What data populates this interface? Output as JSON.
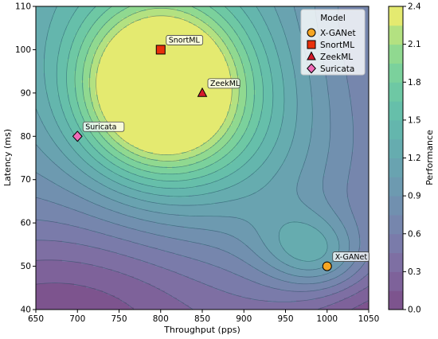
{
  "chart_data": {
    "type": "contour",
    "xlabel": "Throughput (pps)",
    "ylabel": "Latency (ms)",
    "xlim": [
      650,
      1050
    ],
    "ylim": [
      40,
      110
    ],
    "xticks": [
      "650",
      "700",
      "750",
      "800",
      "850",
      "900",
      "950",
      "1000",
      "1050"
    ],
    "yticks": [
      "40",
      "50",
      "60",
      "70",
      "80",
      "90",
      "100",
      "110"
    ],
    "colorbar": {
      "label": "Performance",
      "range": [
        0.0,
        2.4
      ],
      "ticks": [
        "0.0",
        "0.3",
        "0.6",
        "0.9",
        "1.2",
        "1.5",
        "1.8",
        "2.1",
        "2.4"
      ]
    },
    "contour_field": {
      "peak_main": {
        "x": 800,
        "y": 91,
        "value": 2.4
      },
      "peak_secondary": {
        "x": 985,
        "y": 53,
        "value": 1.35
      }
    },
    "legend": {
      "title": "Model",
      "position": "top-right",
      "entries": [
        {
          "name": "X-GANet",
          "marker": "circle",
          "color": "#f5a623"
        },
        {
          "name": "SnortML",
          "marker": "square",
          "color": "#e8310b"
        },
        {
          "name": "ZeekML",
          "marker": "triangle",
          "color": "#d61a2b"
        },
        {
          "name": "Suricata",
          "marker": "diamond",
          "color": "#f06bb8"
        }
      ]
    },
    "points": [
      {
        "name": "X-GANet",
        "x": 1000,
        "y": 50,
        "marker": "circle",
        "color": "#f5a623"
      },
      {
        "name": "SnortML",
        "x": 800,
        "y": 100,
        "marker": "square",
        "color": "#e8310b"
      },
      {
        "name": "ZeekML",
        "x": 850,
        "y": 90,
        "marker": "triangle",
        "color": "#d61a2b"
      },
      {
        "name": "Suricata",
        "x": 700,
        "y": 80,
        "marker": "diamond",
        "color": "#f06bb8"
      }
    ],
    "grid": false
  }
}
